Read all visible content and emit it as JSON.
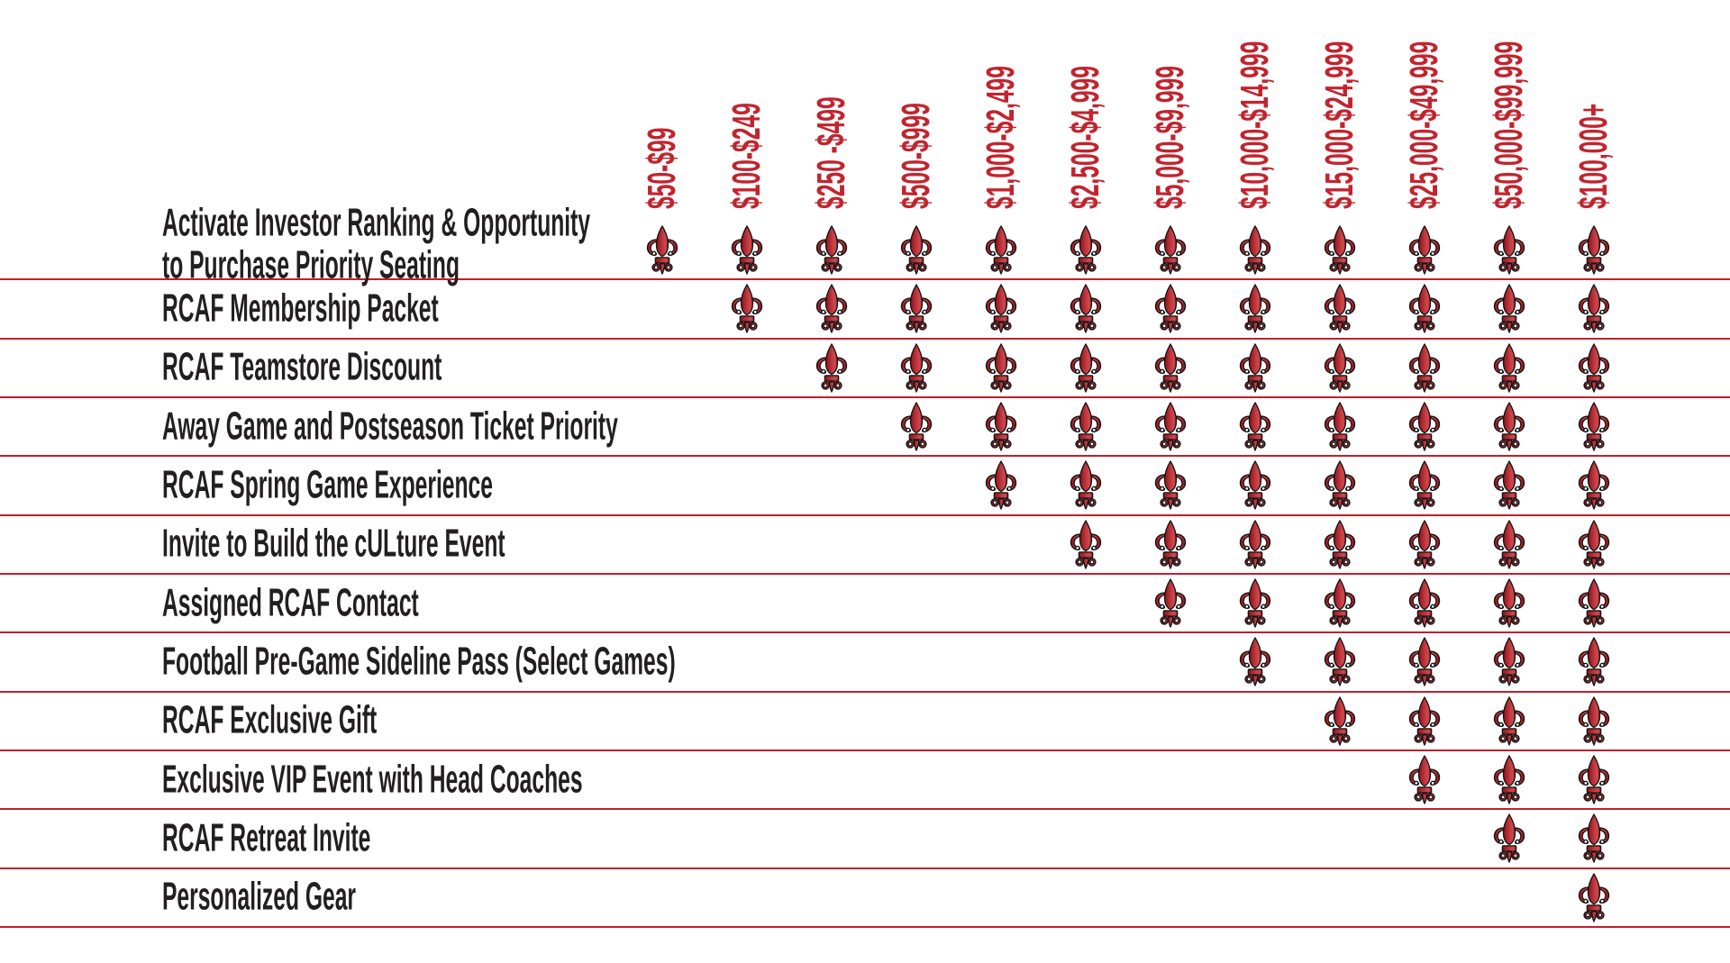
{
  "table": {
    "columns": [
      "$50-$99",
      "$100-$249",
      "$250 -$499",
      "$500-$999",
      "$1,000-$2,499",
      "$2,500-$4,999",
      "$5,000-$9,999",
      "$10,000-$14,999",
      "$15,000-$24,999",
      "$25,000-$49,999",
      "$50,000-$99,999",
      "$100,000+"
    ],
    "rows": [
      {
        "label_lines": [
          "Activate Investor Ranking & Opportunity",
          "to Purchase Priority Seating"
        ],
        "benefits_start_column": 1
      },
      {
        "label_lines": [
          "RCAF Membership Packet"
        ],
        "benefits_start_column": 2
      },
      {
        "label_lines": [
          "RCAF Teamstore Discount"
        ],
        "benefits_start_column": 3
      },
      {
        "label_lines": [
          "Away Game and Postseason Ticket Priority"
        ],
        "benefits_start_column": 4
      },
      {
        "label_lines": [
          "RCAF Spring Game Experience"
        ],
        "benefits_start_column": 5
      },
      {
        "label_lines": [
          "Invite to Build the cULture Event"
        ],
        "benefits_start_column": 6
      },
      {
        "label_lines": [
          "Assigned RCAF Contact"
        ],
        "benefits_start_column": 7
      },
      {
        "label_lines": [
          "Football Pre-Game Sideline Pass (Select Games)"
        ],
        "benefits_start_column": 8
      },
      {
        "label_lines": [
          "RCAF Exclusive Gift"
        ],
        "benefits_start_column": 9
      },
      {
        "label_lines": [
          "Exclusive VIP Event with Head Coaches"
        ],
        "benefits_start_column": 10
      },
      {
        "label_lines": [
          "RCAF Retreat Invite"
        ],
        "benefits_start_column": 11
      },
      {
        "label_lines": [
          "Personalized Gear"
        ],
        "benefits_start_column": 12
      }
    ],
    "check_icon": "fleur-de-lis-icon",
    "colors": {
      "accent_red": "#C2242E",
      "divider_red": "#C0202E",
      "label_dark": "#231F20",
      "fleur_red": "#A6192E",
      "background": "#FFFFFF"
    }
  },
  "chart_data": {
    "type": "table",
    "columns": [
      "$50-$99",
      "$100-$249",
      "$250 -$499",
      "$500-$999",
      "$1,000-$2,499",
      "$2,500-$4,999",
      "$5,000-$9,999",
      "$10,000-$14,999",
      "$15,000-$24,999",
      "$25,000-$49,999",
      "$50,000-$99,999",
      "$100,000+"
    ],
    "rows": [
      "Activate Investor Ranking & Opportunity to Purchase Priority Seating",
      "RCAF Membership Packet",
      "RCAF Teamstore Discount",
      "Away Game and Postseason Ticket Priority",
      "RCAF Spring Game Experience",
      "Invite to Build the cULture Event",
      "Assigned RCAF Contact",
      "Football Pre-Game Sideline Pass (Select Games)",
      "RCAF Exclusive Gift",
      "Exclusive VIP Event with Head Coaches",
      "RCAF Retreat Invite",
      "Personalized Gear"
    ],
    "cell_marker": "fleur-de-lis = benefit included at that giving level",
    "matrix": [
      [
        1,
        1,
        1,
        1,
        1,
        1,
        1,
        1,
        1,
        1,
        1,
        1
      ],
      [
        0,
        1,
        1,
        1,
        1,
        1,
        1,
        1,
        1,
        1,
        1,
        1
      ],
      [
        0,
        0,
        1,
        1,
        1,
        1,
        1,
        1,
        1,
        1,
        1,
        1
      ],
      [
        0,
        0,
        0,
        1,
        1,
        1,
        1,
        1,
        1,
        1,
        1,
        1
      ],
      [
        0,
        0,
        0,
        0,
        1,
        1,
        1,
        1,
        1,
        1,
        1,
        1
      ],
      [
        0,
        0,
        0,
        0,
        0,
        1,
        1,
        1,
        1,
        1,
        1,
        1
      ],
      [
        0,
        0,
        0,
        0,
        0,
        0,
        1,
        1,
        1,
        1,
        1,
        1
      ],
      [
        0,
        0,
        0,
        0,
        0,
        0,
        0,
        1,
        1,
        1,
        1,
        1
      ],
      [
        0,
        0,
        0,
        0,
        0,
        0,
        0,
        0,
        1,
        1,
        1,
        1
      ],
      [
        0,
        0,
        0,
        0,
        0,
        0,
        0,
        0,
        0,
        1,
        1,
        1
      ],
      [
        0,
        0,
        0,
        0,
        0,
        0,
        0,
        0,
        0,
        0,
        1,
        1
      ],
      [
        0,
        0,
        0,
        0,
        0,
        0,
        0,
        0,
        0,
        0,
        0,
        1
      ]
    ],
    "legend_position": "none",
    "grid": "horizontal red rules between rows"
  }
}
